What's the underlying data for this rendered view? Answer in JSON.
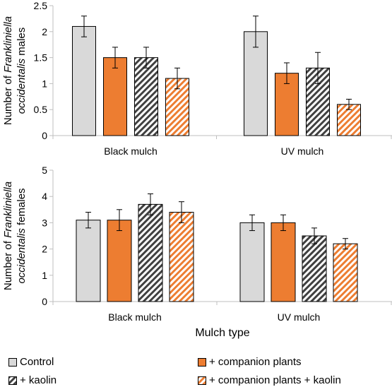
{
  "chart_data": [
    {
      "type": "bar",
      "panel": "males",
      "ylabel_prefix": "Number of ",
      "ylabel_italic": "Frankliniella",
      "ylabel_line2_italic": "occidentalis",
      "ylabel_line2_suffix": " males",
      "xlabel": "",
      "ylim": [
        0,
        2.5
      ],
      "yticks": [
        "0",
        "0.5",
        "1",
        "1.5",
        "2",
        "2.5"
      ],
      "categories": [
        "Black mulch",
        "UV mulch"
      ],
      "series": [
        {
          "name": "Control",
          "values": [
            2.1,
            2.0
          ],
          "errors": [
            0.2,
            0.3
          ]
        },
        {
          "name": "+ companion plants",
          "values": [
            1.5,
            1.2
          ],
          "errors": [
            0.2,
            0.2
          ]
        },
        {
          "name": "+ kaolin",
          "values": [
            1.5,
            1.3
          ],
          "errors": [
            0.2,
            0.3
          ]
        },
        {
          "name": "+ companion plants + kaolin",
          "values": [
            1.1,
            0.6
          ],
          "errors": [
            0.2,
            0.1
          ]
        }
      ]
    },
    {
      "type": "bar",
      "panel": "females",
      "ylabel_prefix": "Number of ",
      "ylabel_italic": "Frankliniella",
      "ylabel_line2_italic": "occidentalis",
      "ylabel_line2_suffix": " females",
      "xlabel": "Mulch type",
      "ylim": [
        0,
        5
      ],
      "yticks": [
        "0",
        "1",
        "2",
        "3",
        "4",
        "5"
      ],
      "categories": [
        "Black mulch",
        "UV mulch"
      ],
      "series": [
        {
          "name": "Control",
          "values": [
            3.1,
            3.0
          ],
          "errors": [
            0.3,
            0.3
          ]
        },
        {
          "name": "+ companion plants",
          "values": [
            3.1,
            3.0
          ],
          "errors": [
            0.4,
            0.3
          ]
        },
        {
          "name": "+ kaolin",
          "values": [
            3.7,
            2.5
          ],
          "errors": [
            0.4,
            0.3
          ]
        },
        {
          "name": "+ companion plants + kaolin",
          "values": [
            3.4,
            2.2
          ],
          "errors": [
            0.4,
            0.2
          ]
        }
      ]
    }
  ],
  "legend": [
    {
      "label": "Control",
      "color": "#d9d9d9",
      "hatch": false
    },
    {
      "label": "+ companion plants",
      "color": "#ed7d31",
      "hatch": false
    },
    {
      "label": "+ kaolin",
      "color": "#404040",
      "hatch": true
    },
    {
      "label": "+ companion plants + kaolin",
      "color": "#ed7d31",
      "hatch": true
    }
  ],
  "colors": {
    "control": "#d9d9d9",
    "companion": "#ed7d31",
    "kaolin_hatch": "#404040",
    "combo_hatch": "#ed7d31",
    "axis": "#bfbfbf"
  }
}
